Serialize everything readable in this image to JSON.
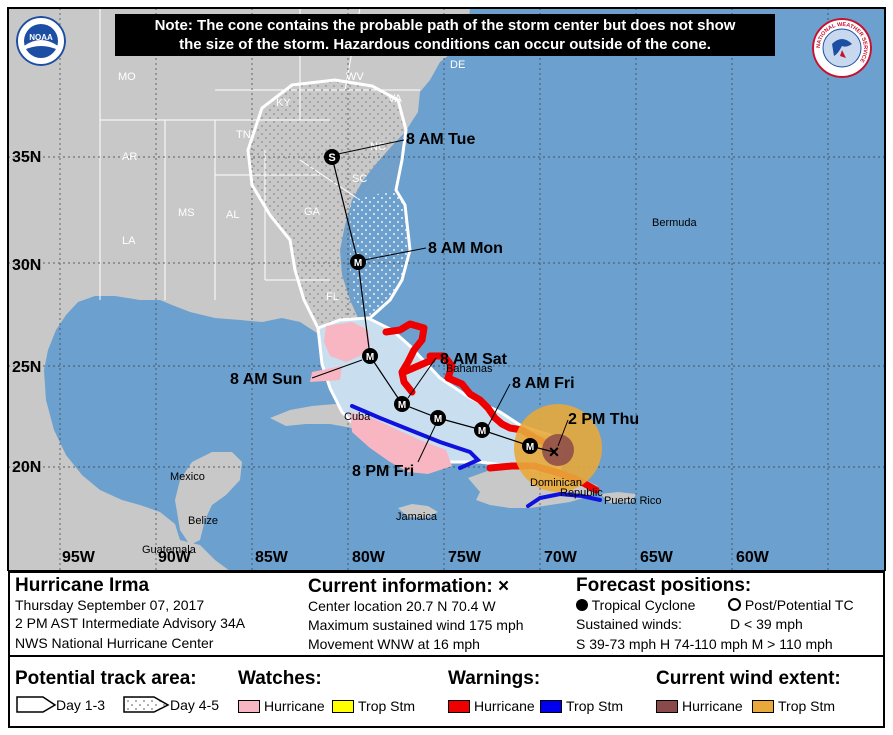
{
  "note": {
    "line1": "Note: The cone contains the probable path of the storm center but does not show",
    "line2": "the size of the storm. Hazardous conditions can occur outside of the cone."
  },
  "logos": {
    "noaa": "NOAA",
    "nws": "NATIONAL WEATHER SERVICE"
  },
  "latitudes": [
    "35N",
    "30N",
    "25N",
    "20N"
  ],
  "longitudes": [
    "95W",
    "90W",
    "85W",
    "80W",
    "75W",
    "70W",
    "65W",
    "60W"
  ],
  "state_labels": [
    "MO",
    "KY",
    "WV",
    "VA",
    "NC",
    "TN",
    "AR",
    "SC",
    "MS",
    "AL",
    "GA",
    "LA",
    "FL",
    "DE"
  ],
  "place_labels": [
    "Bermuda",
    "Bahamas",
    "Cuba",
    "Mexico",
    "Belize",
    "Jamaica",
    "Guatemala",
    "Dominican",
    "Republic",
    "Puerto Rico"
  ],
  "forecast_points": [
    {
      "label": "8 AM Tue",
      "symbol": "S"
    },
    {
      "label": "8 AM Mon",
      "symbol": "M"
    },
    {
      "label": "8 AM Sun",
      "symbol": "M"
    },
    {
      "label": "8 AM Sat",
      "symbol": "M"
    },
    {
      "label": "8 PM Fri",
      "symbol": "M"
    },
    {
      "label": "8 AM Fri",
      "symbol": "M"
    },
    {
      "label": "2 PM Thu",
      "symbol": "X"
    }
  ],
  "extra_point_symbol": "M",
  "storm": {
    "name": "Hurricane Irma",
    "date": "Thursday September 07, 2017",
    "advisory": "2 PM AST Intermediate Advisory 34A",
    "center": "NWS National Hurricane Center"
  },
  "current": {
    "title": "Current information:",
    "symbol": "×",
    "location": "Center location 20.7 N 70.4 W",
    "wind": "Maximum sustained wind 175 mph",
    "movement": "Movement WNW at 16 mph"
  },
  "forecast_legend": {
    "title": "Forecast positions:",
    "tc": "Tropical Cyclone",
    "ptc": "Post/Potential TC",
    "sustained": "Sustained winds:",
    "d": "D < 39 mph",
    "scale": "S 39-73 mph  H 74-110 mph  M > 110 mph"
  },
  "track_legend": {
    "title": "Potential track area:",
    "day13": "Day 1-3",
    "day45": "Day 4-5"
  },
  "watches": {
    "title": "Watches:",
    "hurricane": "Hurricane",
    "trop": "Trop Stm"
  },
  "warnings": {
    "title": "Warnings:",
    "hurricane": "Hurricane",
    "trop": "Trop Stm"
  },
  "wind_extent": {
    "title": "Current wind extent:",
    "hurricane": "Hurricane",
    "trop": "Trop Stm"
  },
  "colors": {
    "ocean": "#6ba0cf",
    "land": "#c8c8c8",
    "hurricane_watch": "#f7b6c2",
    "trop_watch": "#ffff00",
    "hurricane_warning": "#ee0000",
    "trop_warning": "#0000ee",
    "hurricane_wind": "#8b4a4a",
    "trop_wind": "#e8a93a",
    "cone_day13": "#c9dff0"
  }
}
